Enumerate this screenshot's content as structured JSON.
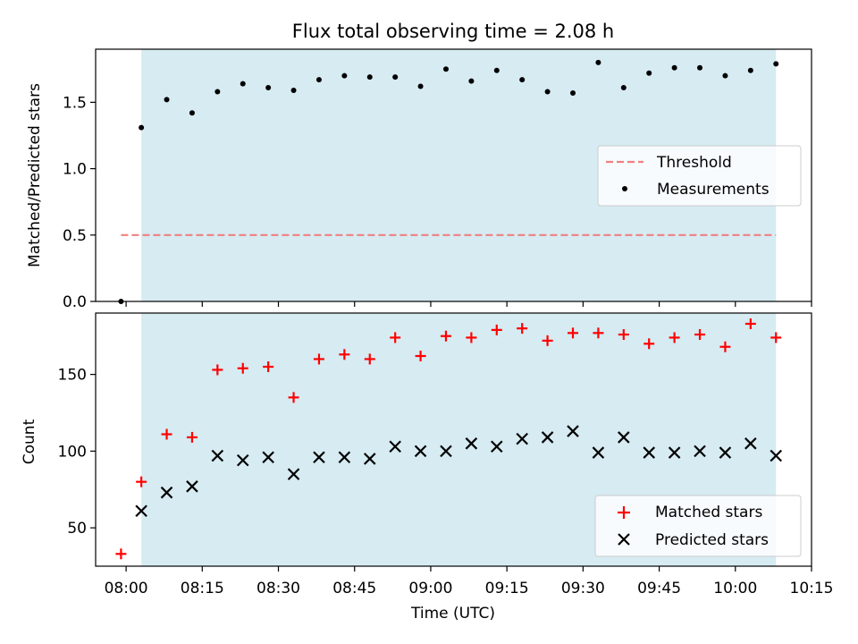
{
  "chart_data": [
    {
      "type": "scatter",
      "title": "Flux total observing time = 2.08 h",
      "ylabel": "Matched/Predicted stars",
      "xlabel": "",
      "xlim": [
        "07:54",
        "10:15"
      ],
      "ylim": [
        0,
        1.9
      ],
      "yticks": [
        0.0,
        0.5,
        1.0,
        1.5
      ],
      "ytick_labels": [
        "0.0",
        "0.5",
        "1.0",
        "1.5"
      ],
      "shaded_span": [
        "08:03",
        "10:08"
      ],
      "legend": {
        "placement": "center-right",
        "entries": [
          "Threshold",
          "Measurements"
        ]
      },
      "threshold": {
        "name": "Threshold",
        "value": 0.5,
        "x_start": "07:59",
        "x_end": "10:08",
        "color": "#f08080"
      },
      "series": [
        {
          "name": "Measurements",
          "x": [
            "07:59",
            "08:03",
            "08:08",
            "08:13",
            "08:18",
            "08:23",
            "08:28",
            "08:33",
            "08:38",
            "08:43",
            "08:48",
            "08:53",
            "08:58",
            "09:03",
            "09:08",
            "09:13",
            "09:18",
            "09:23",
            "09:28",
            "09:33",
            "09:38",
            "09:43",
            "09:48",
            "09:53",
            "09:58",
            "10:03",
            "10:08"
          ],
          "y": [
            0.0,
            1.31,
            1.52,
            1.42,
            1.58,
            1.64,
            1.61,
            1.59,
            1.67,
            1.7,
            1.69,
            1.69,
            1.62,
            1.75,
            1.66,
            1.74,
            1.67,
            1.58,
            1.57,
            1.8,
            1.61,
            1.72,
            1.76,
            1.76,
            1.7,
            1.74,
            1.79
          ],
          "color": "#000000"
        }
      ]
    },
    {
      "type": "scatter",
      "title": "",
      "ylabel": "Count",
      "xlabel": "Time (UTC)",
      "xlim": [
        "07:54",
        "10:15"
      ],
      "xticks": [
        "08:00",
        "08:15",
        "08:30",
        "08:45",
        "09:00",
        "09:15",
        "09:30",
        "09:45",
        "10:00",
        "10:15"
      ],
      "ylim": [
        25,
        190
      ],
      "yticks": [
        50,
        100,
        150
      ],
      "ytick_labels": [
        "50",
        "100",
        "150"
      ],
      "shaded_span": [
        "08:03",
        "10:08"
      ],
      "legend": {
        "placement": "lower-right",
        "entries": [
          "Matched stars",
          "Predicted stars"
        ]
      },
      "series": [
        {
          "name": "Matched stars",
          "marker": "+",
          "color": "#ff0000",
          "x": [
            "07:59",
            "08:03",
            "08:08",
            "08:13",
            "08:18",
            "08:23",
            "08:28",
            "08:33",
            "08:38",
            "08:43",
            "08:48",
            "08:53",
            "08:58",
            "09:03",
            "09:08",
            "09:13",
            "09:18",
            "09:23",
            "09:28",
            "09:33",
            "09:38",
            "09:43",
            "09:48",
            "09:53",
            "09:58",
            "10:03",
            "10:08"
          ],
          "y": [
            33,
            80,
            111,
            109,
            153,
            154,
            155,
            135,
            160,
            163,
            160,
            174,
            162,
            175,
            174,
            179,
            180,
            172,
            177,
            177,
            176,
            170,
            174,
            176,
            168,
            183,
            174
          ]
        },
        {
          "name": "Predicted stars",
          "marker": "x",
          "color": "#000000",
          "x": [
            "08:03",
            "08:08",
            "08:13",
            "08:18",
            "08:23",
            "08:28",
            "08:33",
            "08:38",
            "08:43",
            "08:48",
            "08:53",
            "08:58",
            "09:03",
            "09:08",
            "09:13",
            "09:18",
            "09:23",
            "09:28",
            "09:33",
            "09:38",
            "09:43",
            "09:48",
            "09:53",
            "09:58",
            "10:03",
            "10:08"
          ],
          "y": [
            61,
            73,
            77,
            97,
            94,
            96,
            85,
            96,
            96,
            95,
            103,
            100,
            100,
            105,
            103,
            108,
            109,
            113,
            99,
            109,
            99,
            99,
            100,
            99,
            105,
            97
          ]
        }
      ]
    }
  ]
}
